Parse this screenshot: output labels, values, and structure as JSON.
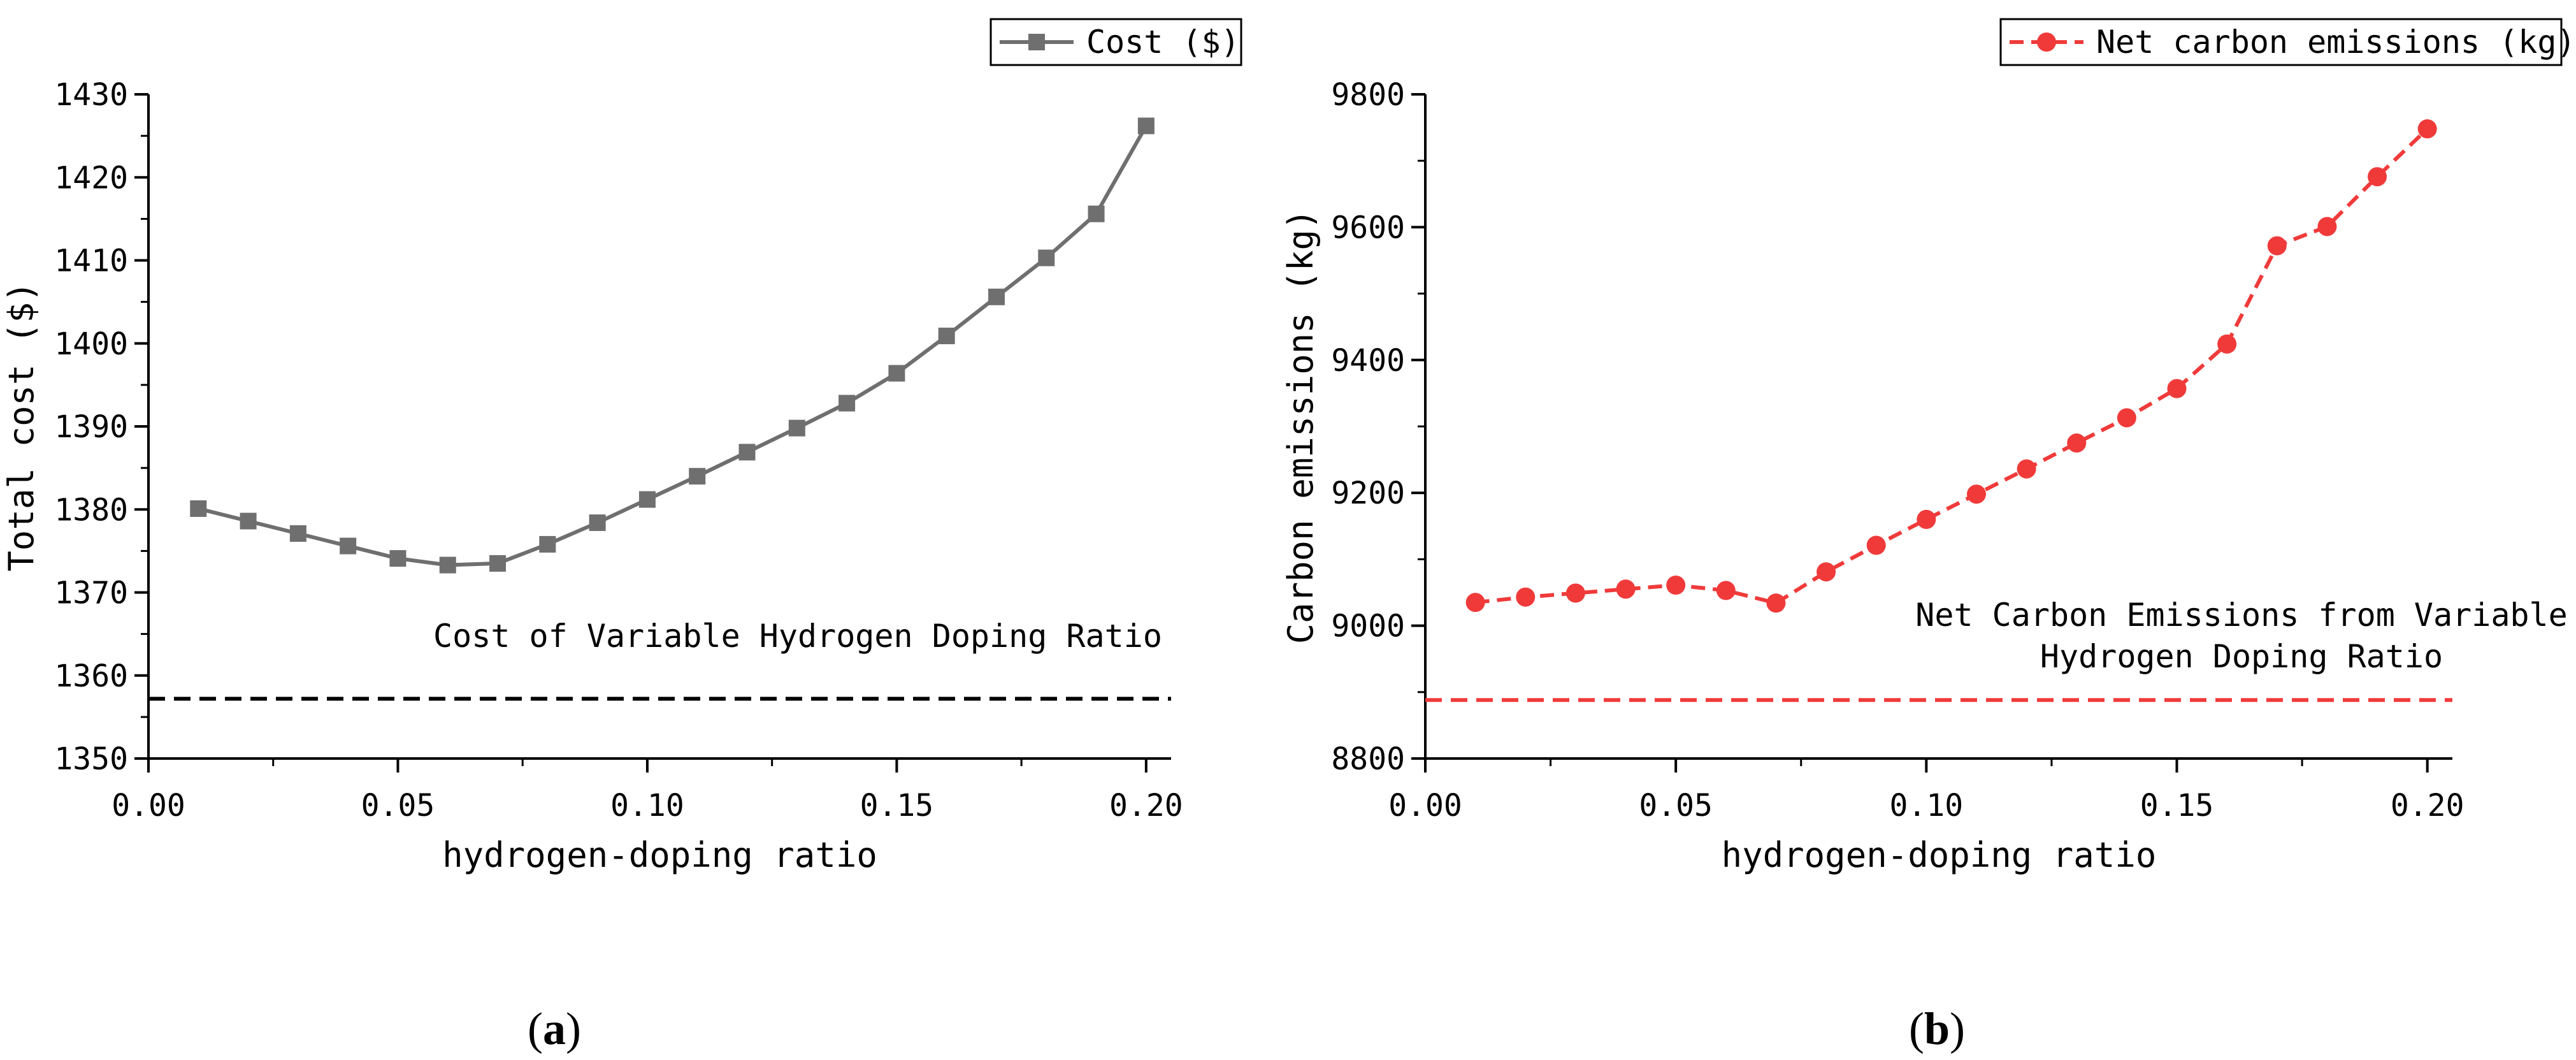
{
  "chart_data": [
    {
      "type": "line",
      "panel_label": "(a)",
      "panel_letter": "a",
      "xlabel": "hydrogen-doping ratio",
      "ylabel": "Total cost ($)",
      "xlim": [
        0.0,
        0.205
      ],
      "ylim": [
        1350,
        1430
      ],
      "x_ticks": [
        "0.00",
        "0.05",
        "0.10",
        "0.15",
        "0.20"
      ],
      "x_tick_values": [
        0.0,
        0.05,
        0.1,
        0.15,
        0.2
      ],
      "y_ticks": [
        "1350",
        "1360",
        "1370",
        "1380",
        "1390",
        "1400",
        "1410",
        "1420",
        "1430"
      ],
      "y_tick_values": [
        1350,
        1360,
        1370,
        1380,
        1390,
        1400,
        1410,
        1420,
        1430
      ],
      "legend_position": "top-right",
      "series": [
        {
          "name": "Cost ($)",
          "color": "#6f6f6f",
          "line_style": "solid",
          "marker": "square",
          "x": [
            0.01,
            0.02,
            0.03,
            0.04,
            0.05,
            0.06,
            0.07,
            0.08,
            0.09,
            0.1,
            0.11,
            0.12,
            0.13,
            0.14,
            0.15,
            0.16,
            0.17,
            0.18,
            0.19,
            0.2
          ],
          "values": [
            1380.1,
            1378.6,
            1377.1,
            1375.6,
            1374.1,
            1373.3,
            1373.5,
            1375.8,
            1378.4,
            1381.2,
            1384.0,
            1386.9,
            1389.8,
            1392.8,
            1396.4,
            1400.9,
            1405.6,
            1410.3,
            1415.6,
            1426.2
          ]
        }
      ],
      "reference_line": {
        "label": "Cost of Variable Hydrogen Doping Ratio",
        "value": 1357.2,
        "color": "#000000",
        "line_style": "dashed"
      }
    },
    {
      "type": "line",
      "panel_label": "(b)",
      "panel_letter": "b",
      "xlabel": "hydrogen-doping ratio",
      "ylabel": "Carbon emissions (kg)",
      "xlim": [
        0.0,
        0.205
      ],
      "ylim": [
        8800,
        9800
      ],
      "x_ticks": [
        "0.00",
        "0.05",
        "0.10",
        "0.15",
        "0.20"
      ],
      "x_tick_values": [
        0.0,
        0.05,
        0.1,
        0.15,
        0.2
      ],
      "y_ticks": [
        "8800",
        "9000",
        "9200",
        "9400",
        "9600",
        "9800"
      ],
      "y_tick_values": [
        8800,
        9000,
        9200,
        9400,
        9600,
        9800
      ],
      "legend_position": "top-right",
      "series": [
        {
          "name": "Net carbon emissions (kg)",
          "color": "#f03a3a",
          "line_style": "dashed",
          "marker": "circle",
          "x": [
            0.01,
            0.02,
            0.03,
            0.04,
            0.05,
            0.06,
            0.07,
            0.08,
            0.09,
            0.1,
            0.11,
            0.12,
            0.13,
            0.14,
            0.15,
            0.16,
            0.17,
            0.18,
            0.19,
            0.2
          ],
          "values": [
            9035,
            9043,
            9049,
            9055,
            9061,
            9053,
            9034,
            9081,
            9121,
            9160,
            9198,
            9236,
            9275,
            9313,
            9357,
            9424,
            9572,
            9601,
            9676,
            9748
          ]
        }
      ],
      "reference_line": {
        "label_lines": [
          "Net Carbon Emissions from Variable",
          "Hydrogen Doping Ratio"
        ],
        "value": 8888,
        "color": "#f03a3a",
        "line_style": "dashed"
      }
    }
  ]
}
